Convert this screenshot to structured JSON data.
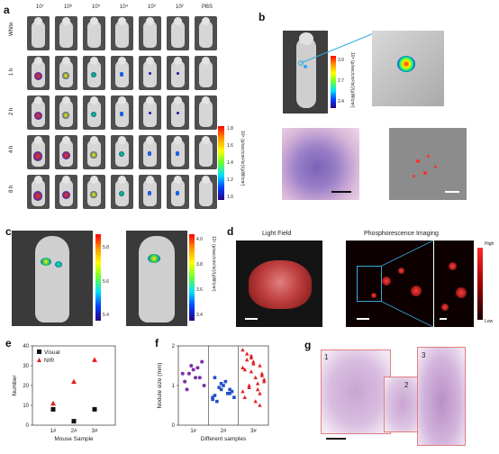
{
  "panel_a": {
    "label": "a",
    "col_headers": [
      "10⁷",
      "10⁶",
      "10⁵",
      "10⁴",
      "10³",
      "10²",
      "PBS"
    ],
    "row_labels": [
      "White",
      "1 h",
      "2 h",
      "4 h",
      "8 h"
    ],
    "colorbar_ticks": [
      "1.8",
      "1.6",
      "1.4",
      "1.2",
      "1.0"
    ],
    "colorbar_unit": "10⁶ (p/sec/cm²/sr)/(μW/cm²)"
  },
  "panel_b": {
    "label": "b",
    "colorbar_ticks": [
      "3.0",
      "2.7",
      "2.4"
    ],
    "colorbar_unit": "10⁶ (p/sec/cm²/sr)/(μW/cm²)"
  },
  "panel_c": {
    "label": "c",
    "bar1_ticks": [
      "5.8",
      "5.6",
      "5.4"
    ],
    "bar2_ticks": [
      "4.0",
      "3.8",
      "3.6",
      "3.4"
    ],
    "colorbar_unit": "10⁶ (p/sec/cm²/sr)/(μW/cm²)"
  },
  "panel_d": {
    "label": "d",
    "light_title": "Light Field",
    "phos_title": "Phosphorescence Imaging",
    "scale_high": "High",
    "scale_low": "Low"
  },
  "panel_e": {
    "label": "e",
    "chart_data": {
      "type": "scatter",
      "xlabel": "Mouse Sample",
      "ylabel": "Number",
      "categories": [
        "1#",
        "2#",
        "3#"
      ],
      "ylim": [
        0,
        40
      ],
      "yticks": [
        0,
        10,
        20,
        30,
        40
      ],
      "series": [
        {
          "name": "Visual",
          "values": [
            8,
            2,
            8
          ],
          "color": "#111111",
          "marker": "square"
        },
        {
          "name": "NIR",
          "values": [
            11,
            22,
            33
          ],
          "color": "#e02020",
          "marker": "triangle"
        }
      ],
      "legend": "top-left"
    }
  },
  "panel_f": {
    "label": "f",
    "chart_data": {
      "type": "scatter",
      "xlabel": "Different samples",
      "ylabel": "Nodule size (mm)",
      "categories": [
        "1#",
        "2#",
        "3#"
      ],
      "ylim": [
        0,
        2
      ],
      "yticks": [
        0,
        1,
        2
      ],
      "series": [
        {
          "values": [
            1.3,
            1.5,
            1.2,
            1.1,
            1.4,
            1.6,
            0.9,
            1.2,
            1.0,
            1.3,
            1.45
          ],
          "color": "#7b2fa8",
          "marker": "circle"
        },
        {
          "values": [
            0.7,
            0.9,
            0.8,
            0.75,
            1.0,
            0.85,
            0.6,
            1.1,
            0.7,
            0.95,
            0.8,
            0.65,
            1.05,
            0.9,
            1.2
          ],
          "color": "#2050c8",
          "marker": "square"
        },
        {
          "values": [
            1.9,
            1.7,
            1.5,
            1.4,
            1.6,
            1.3,
            1.8,
            1.2,
            1.1,
            1.0,
            0.9,
            1.45,
            1.35,
            0.8,
            0.7,
            1.55,
            1.25,
            1.65,
            0.6,
            1.15,
            0.95,
            1.05,
            0.85,
            1.75,
            0.5
          ],
          "color": "#e02020",
          "marker": "triangle"
        }
      ]
    }
  },
  "panel_g": {
    "label": "g",
    "region_labels": [
      "1",
      "2",
      "3"
    ]
  },
  "colors": {
    "accent_red": "#e02020",
    "dark_bg": "#1a1a1a"
  }
}
